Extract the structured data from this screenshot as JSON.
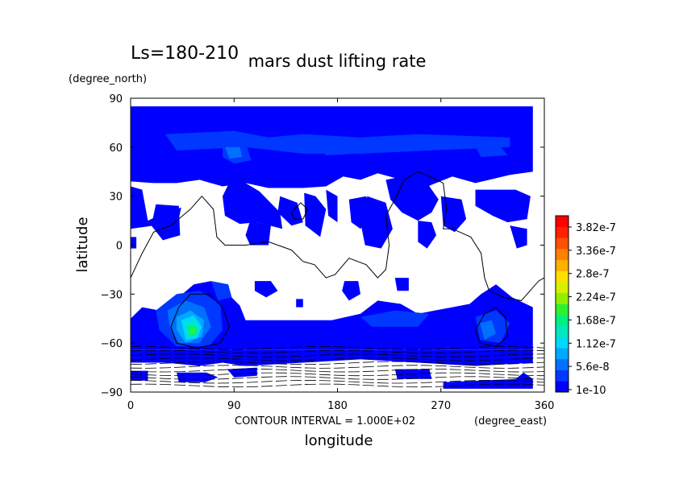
{
  "chart_data": {
    "type": "heatmap",
    "title": "mars dust lifting rate",
    "subtitle": "Ls=180-210",
    "xlabel": "longitude",
    "ylabel": "latitude",
    "x_unit": "(degree_east)",
    "y_unit": "(degree_north)",
    "footnote": "CONTOUR INTERVAL = 1.000E+02",
    "xlim": [
      0,
      360
    ],
    "ylim": [
      -90,
      90
    ],
    "x_ticks": [
      0,
      90,
      180,
      270,
      360
    ],
    "y_ticks": [
      -90,
      -60,
      -30,
      0,
      30,
      60,
      90
    ],
    "colorbar": {
      "labels": [
        "1e-10",
        "5.6e-8",
        "1.12e-7",
        "1.68e-7",
        "2.24e-7",
        "2.8e-7",
        "3.36e-7",
        "3.82e-7"
      ],
      "colors": [
        "#0000ff",
        "#0038ff",
        "#0070ff",
        "#00a8ff",
        "#00d8ff",
        "#00e8c0",
        "#00f080",
        "#30f030",
        "#90f000",
        "#d8f000",
        "#ffe000",
        "#ffb000",
        "#ff8000",
        "#ff5000",
        "#ff2000",
        "#ff0000"
      ]
    },
    "dust_lifting_regions": [
      {
        "name": "north polar band",
        "lon": [
          0,
          350
        ],
        "lat": [
          40,
          85
        ],
        "level": "low"
      },
      {
        "name": "northern mid-latitude patches",
        "lon": [
          0,
          330
        ],
        "lat": [
          0,
          40
        ],
        "level": "low"
      },
      {
        "name": "southern highland maximum",
        "lon": [
          40,
          70
        ],
        "lat": [
          -60,
          -40
        ],
        "level": "peak ~1.7e-7"
      },
      {
        "name": "southern mid-latitude band",
        "lon": [
          0,
          350
        ],
        "lat": [
          -65,
          -30
        ],
        "level": "low"
      },
      {
        "name": "south polar patches",
        "lon": [
          0,
          350
        ],
        "lat": [
          -90,
          -65
        ],
        "level": "low"
      }
    ]
  }
}
